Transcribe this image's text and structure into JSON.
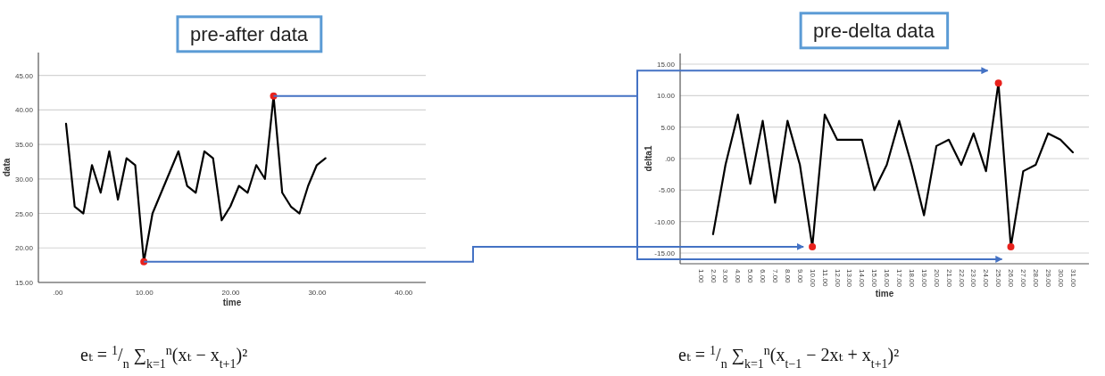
{
  "chart_data": [
    {
      "type": "line",
      "title": "pre-after data",
      "xlabel": "time",
      "ylabel": "data",
      "x": [
        1,
        2,
        3,
        4,
        5,
        6,
        7,
        8,
        9,
        10,
        11,
        12,
        13,
        14,
        15,
        16,
        17,
        18,
        19,
        20,
        21,
        22,
        23,
        24,
        25,
        26,
        27,
        28,
        29,
        30,
        31
      ],
      "series": [
        {
          "color": "#000000",
          "values": [
            38,
            26,
            25,
            32,
            28,
            34,
            27,
            33,
            32,
            18,
            25,
            28,
            31,
            34,
            29,
            28,
            34,
            33,
            24,
            26,
            29,
            28,
            32,
            30,
            42,
            28,
            26,
            25,
            29,
            32,
            33
          ]
        },
        {
          "type": "scatter",
          "color": "#e8211c",
          "x": [
            10,
            25
          ],
          "values": [
            18,
            42
          ]
        }
      ],
      "xlim": [
        -2.2,
        42.6
      ],
      "ylim": [
        15,
        48.3
      ],
      "xticks": [
        {
          "value": 0,
          "label": ".00"
        },
        {
          "value": 10,
          "label": "10.00"
        },
        {
          "value": 20,
          "label": "20.00"
        },
        {
          "value": 30,
          "label": "30.00"
        },
        {
          "value": 40,
          "label": "40.00"
        }
      ],
      "yticks": [
        {
          "value": 15,
          "label": "15.00"
        },
        {
          "value": 20,
          "label": "20.00"
        },
        {
          "value": 25,
          "label": "25.00"
        },
        {
          "value": 30,
          "label": "30.00"
        },
        {
          "value": 35,
          "label": "35.00"
        },
        {
          "value": 40,
          "label": "40.00"
        },
        {
          "value": 45,
          "label": "45.00"
        }
      ],
      "grid": "y",
      "annotations": [
        "eₜ = $^{1}$/$_{n}$ ∑$_{k=1}$$^{n}$(xₜ − x$_{t+1}$)²"
      ]
    },
    {
      "type": "line",
      "title": "pre-delta data",
      "xlabel": "time",
      "ylabel": "delta1",
      "categories": [
        "1.00",
        "2.00",
        "3.00",
        "4.00",
        "5.00",
        "6.00",
        "7.00",
        "8.00",
        "9.00",
        "10.00",
        "11.00",
        "12.00",
        "13.00",
        "14.00",
        "15.00",
        "16.00",
        "17.00",
        "18.00",
        "19.00",
        "20.00",
        "21.00",
        "22.00",
        "23.00",
        "24.00",
        "25.00",
        "26.00",
        "27.00",
        "28.00",
        "29.00",
        "30.00",
        "31.00"
      ],
      "series": [
        {
          "color": "#000000",
          "values": [
            null,
            -12,
            -1,
            7,
            -4,
            6,
            -7,
            6,
            -1,
            -14,
            7,
            3,
            3,
            3,
            -5,
            -1,
            6,
            -1,
            -9,
            2,
            3,
            -1,
            4,
            -2,
            12,
            -14,
            -2,
            -1,
            4,
            3,
            1
          ]
        },
        {
          "type": "scatter",
          "color": "#e8211c",
          "x": [
            "10.00",
            "25.00",
            "26.00"
          ],
          "values": [
            -14,
            12,
            -14
          ]
        }
      ],
      "ylim": [
        -16.7,
        16.7
      ],
      "yticks": [
        {
          "value": -15,
          "label": "-15.00"
        },
        {
          "value": -10,
          "label": "-10.00"
        },
        {
          "value": -5,
          "label": "-5.00"
        },
        {
          "value": 0,
          "label": ".00"
        },
        {
          "value": 5,
          "label": "5.00"
        },
        {
          "value": 10,
          "label": "10.00"
        },
        {
          "value": 15,
          "label": "15.00"
        }
      ],
      "grid": "y",
      "annotations": [
        "eₜ = $^{1}$/$_{n}$ ∑$_{k=1}$$^{n}$(x$_{t−1}$ − 2xₜ + x$_{t+1}$)²"
      ]
    }
  ]
}
